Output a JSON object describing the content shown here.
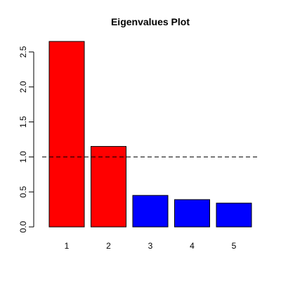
{
  "chart_data": {
    "type": "bar",
    "title": "Eigenvalues Plot",
    "xlabel": "",
    "ylabel": "",
    "categories": [
      "1",
      "2",
      "3",
      "4",
      "5"
    ],
    "values": [
      2.65,
      1.15,
      0.45,
      0.39,
      0.34
    ],
    "bar_colors": [
      "#ff0000",
      "#ff0000",
      "#0000ff",
      "#0000ff",
      "#0000ff"
    ],
    "ylim": [
      0,
      2.65
    ],
    "yticks": [
      0.0,
      0.5,
      1.0,
      1.5,
      2.0,
      2.5
    ],
    "ytick_labels": [
      "0.0",
      "0.5",
      "1.0",
      "1.5",
      "2.0",
      "2.5"
    ],
    "reference_line": {
      "y": 1.0,
      "style": "dashed",
      "color": "#000000"
    },
    "grid": false,
    "legend": "none"
  }
}
